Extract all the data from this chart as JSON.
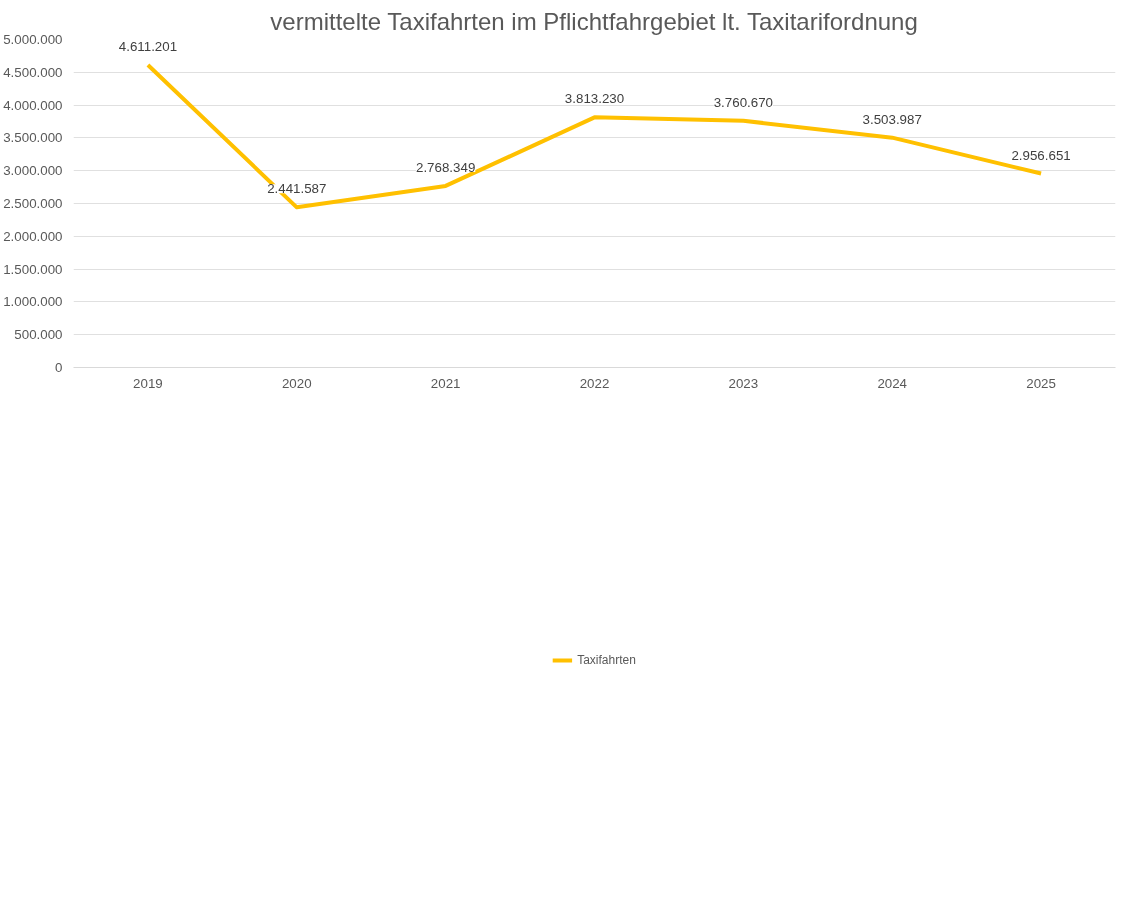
{
  "chart_data": {
    "type": "line",
    "title": "vermittelte Taxifahrten im Pflichtfahrgebiet lt. Taxitarifordnung",
    "categories": [
      "2019",
      "2020",
      "2021",
      "2022",
      "2023",
      "2024",
      "2025"
    ],
    "series": [
      {
        "name": "Taxifahrten",
        "color": "#ffc000",
        "values": [
          4611201,
          2441587,
          2768349,
          3813230,
          3760670,
          3503987,
          2956651
        ],
        "value_labels": [
          "4.611.201",
          "2.441.587",
          "2.768.349",
          "3.813.230",
          "3.760.670",
          "3.503.987",
          "2.956.651"
        ]
      }
    ],
    "ylim": [
      0,
      5000000
    ],
    "yticks": [
      {
        "value": 0,
        "label": "0"
      },
      {
        "value": 500000,
        "label": "500.000"
      },
      {
        "value": 1000000,
        "label": "1.000.000"
      },
      {
        "value": 1500000,
        "label": "1.500.000"
      },
      {
        "value": 2000000,
        "label": "2.000.000"
      },
      {
        "value": 2500000,
        "label": "2.500.000"
      },
      {
        "value": 3000000,
        "label": "3.000.000"
      },
      {
        "value": 3500000,
        "label": "3.500.000"
      },
      {
        "value": 4000000,
        "label": "4.000.000"
      },
      {
        "value": 4500000,
        "label": "4.500.000"
      },
      {
        "value": 5000000,
        "label": "5.000.000"
      }
    ],
    "grid": "y",
    "legend": "bottom",
    "marker": "none",
    "line_style": "solid"
  }
}
